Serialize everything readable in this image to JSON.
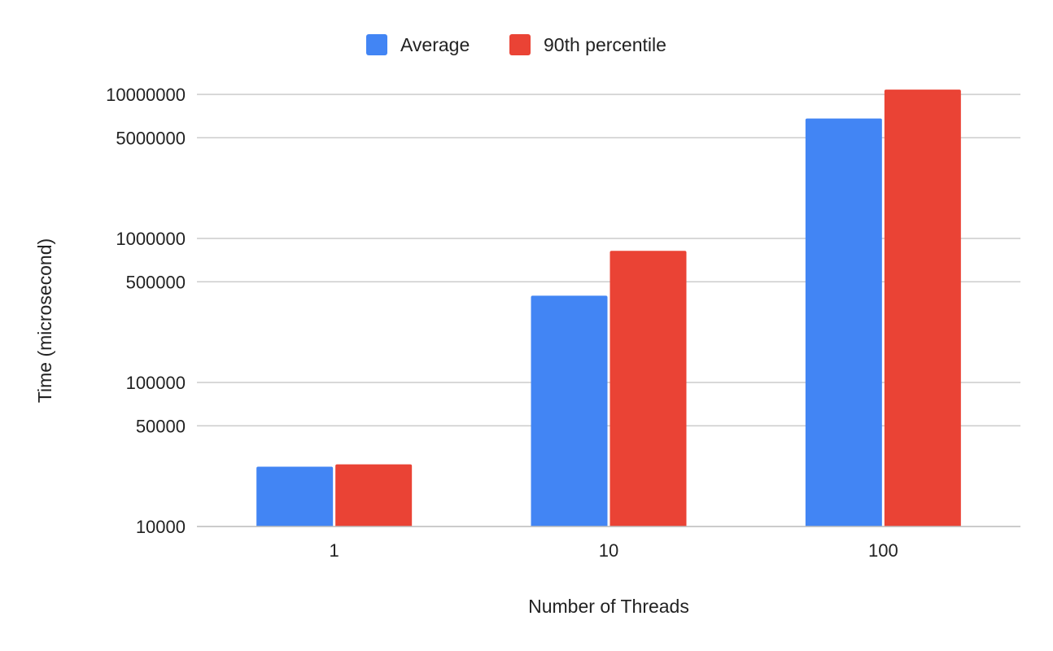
{
  "chart_data": {
    "type": "bar",
    "title": "",
    "xlabel": "Number of Threads",
    "ylabel": "Time (microsecond)",
    "yscale": "log",
    "ylim": [
      10000,
      12000000
    ],
    "yticks": [
      10000,
      50000,
      100000,
      500000,
      1000000,
      5000000,
      10000000
    ],
    "ytick_labels": [
      "10000",
      "50000",
      "100000",
      "500000",
      "1000000",
      "5000000",
      "10000000"
    ],
    "categories": [
      "1",
      "10",
      "100"
    ],
    "series": [
      {
        "name": "Average",
        "color": "#4285F4",
        "values": [
          26000,
          400000,
          6800000
        ]
      },
      {
        "name": "90th percentile",
        "color": "#EA4335",
        "values": [
          27000,
          820000,
          10800000
        ]
      }
    ],
    "grid": true,
    "legend": "top-center"
  }
}
